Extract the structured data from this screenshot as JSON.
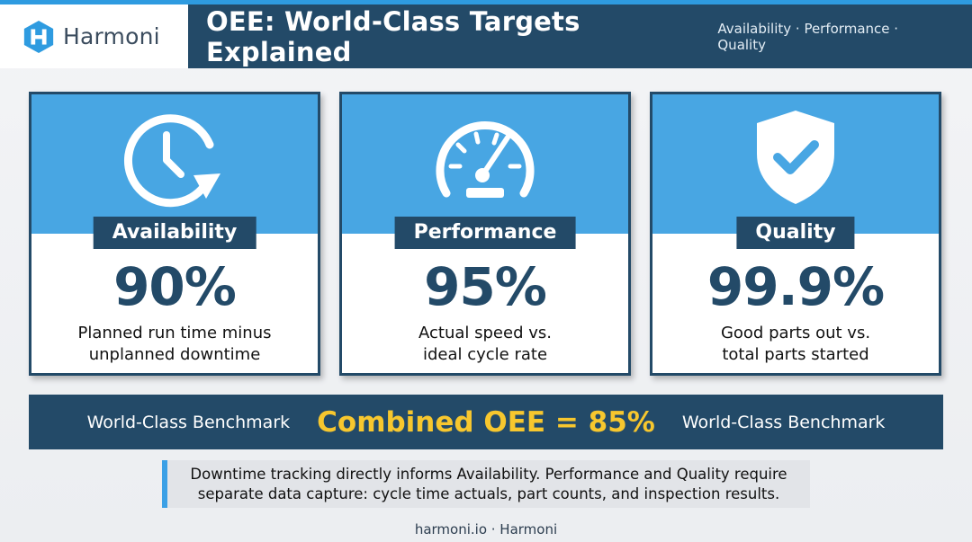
{
  "brand": {
    "name": "Harmoni",
    "logo_icon": "harmoni-h-logo"
  },
  "header": {
    "title": "OEE: World-Class Targets Explained",
    "subtitle": "Availability · Performance · Quality"
  },
  "colors": {
    "navy": "#234a68",
    "sky": "#48a6e3",
    "gold": "#f7c72e",
    "accent": "#2e9be0"
  },
  "cards": [
    {
      "icon": "clock-refresh-icon",
      "label": "Availability",
      "value": "90%",
      "desc_line1": "Planned run time minus",
      "desc_line2": "unplanned downtime"
    },
    {
      "icon": "speedometer-icon",
      "label": "Performance",
      "value": "95%",
      "desc_line1": "Actual speed vs.",
      "desc_line2": "ideal cycle rate"
    },
    {
      "icon": "shield-check-icon",
      "label": "Quality",
      "value": "99.9%",
      "desc_line1": "Good parts out vs.",
      "desc_line2": "total parts started"
    }
  ],
  "banner": {
    "left": "World-Class Benchmark",
    "center": "Combined OEE = 85%",
    "right": "World-Class Benchmark"
  },
  "note": {
    "line1": "Downtime tracking directly informs Availability. Performance and Quality require",
    "line2": "separate data capture: cycle time actuals, part counts, and inspection results."
  },
  "footer": "harmoni.io · Harmoni"
}
